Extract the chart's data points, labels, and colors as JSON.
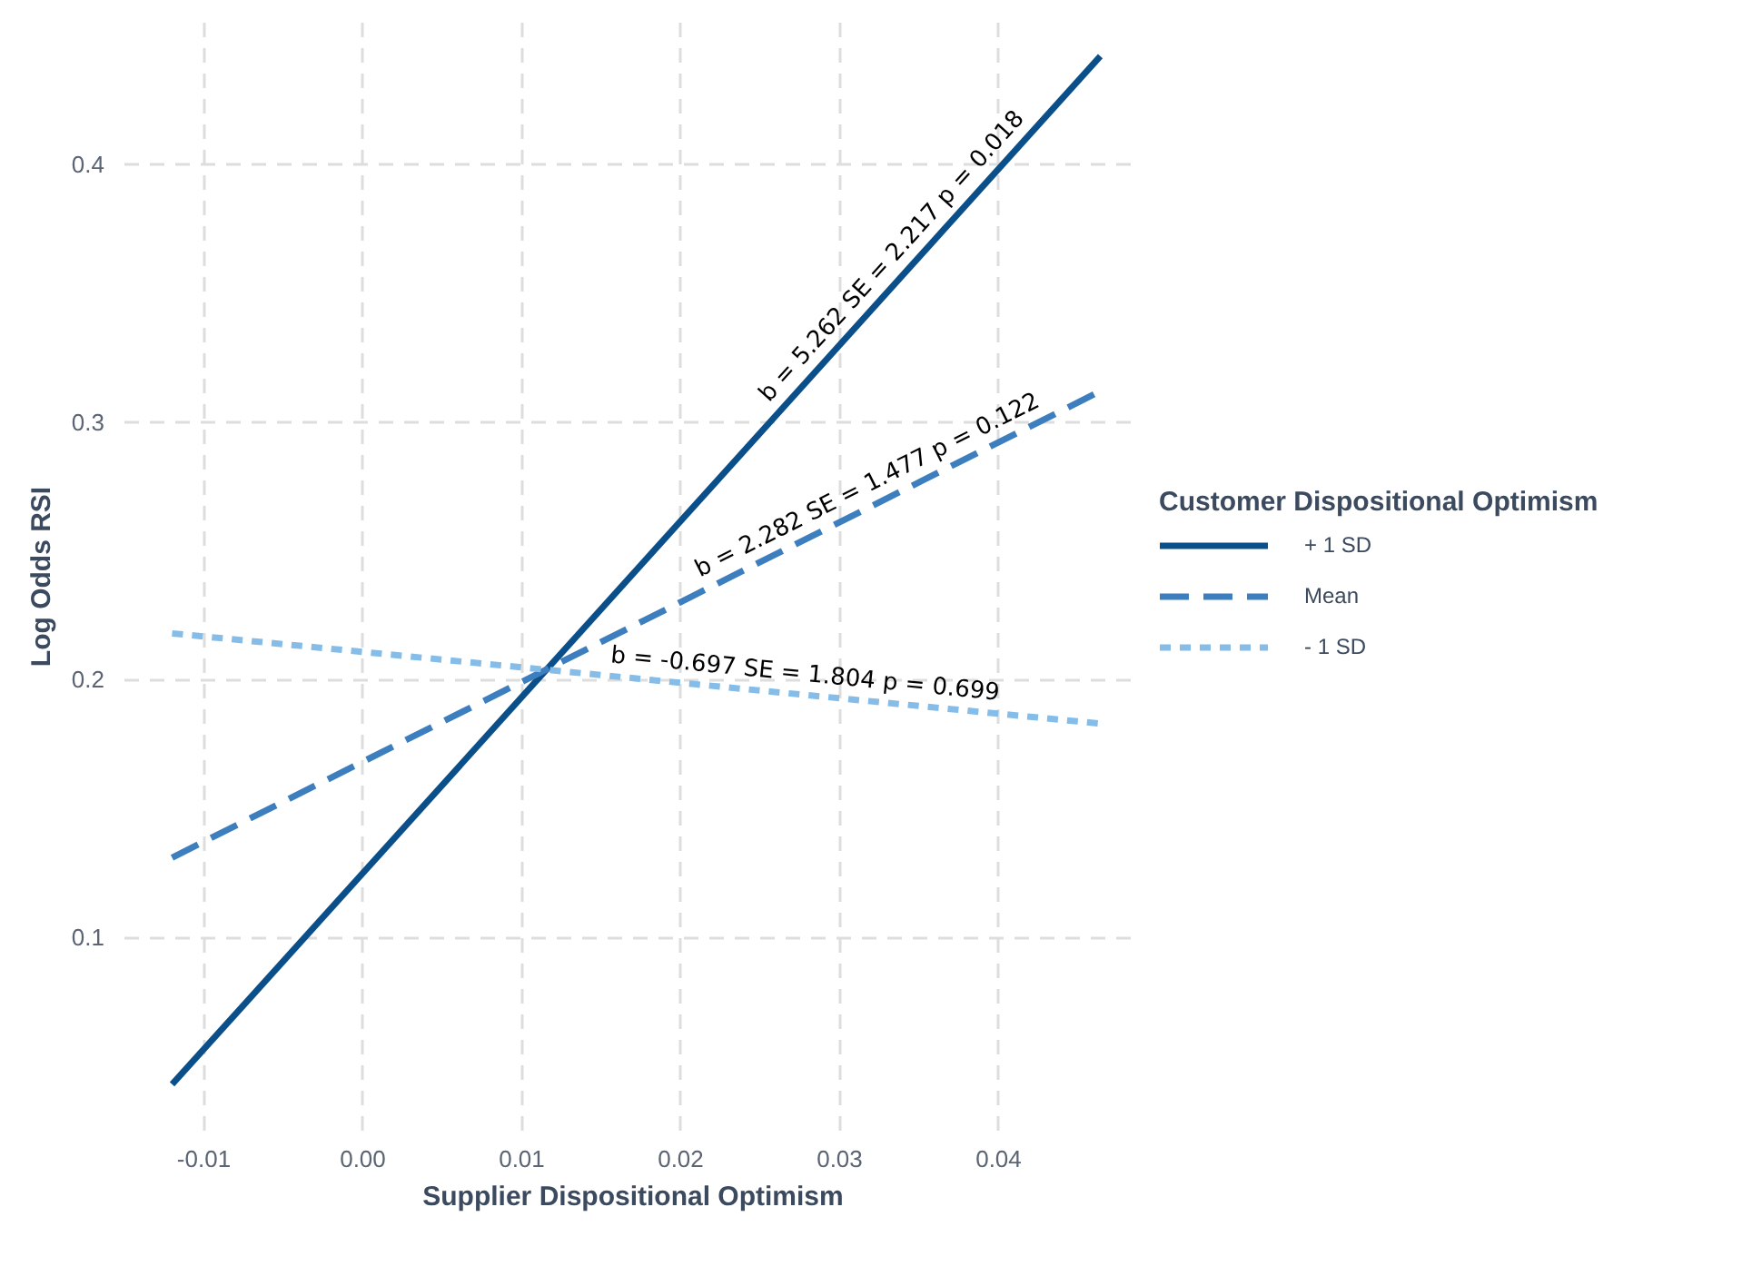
{
  "chart_data": {
    "type": "line",
    "xlabel": "Supplier Dispositional Optimism",
    "ylabel": "Log Odds RSI",
    "legend_title": "Customer Dispositional Optimism",
    "legend": "right",
    "grid": true,
    "x": [
      -0.012,
      0.0464
    ],
    "series": [
      {
        "name": "+ 1 SD",
        "color": "#0b4f8a",
        "line_style": "solid",
        "values": [
          0.043,
          0.442
        ]
      },
      {
        "name": "Mean",
        "color": "#3d7ebf",
        "line_style": "dashed",
        "values": [
          0.131,
          0.312
        ]
      },
      {
        "name": "- 1 SD",
        "color": "#85bde8",
        "line_style": "dotted",
        "values": [
          0.218,
          0.183
        ]
      }
    ],
    "xlim": [
      -0.015,
      0.049
    ],
    "xticks": [
      {
        "value": -0.01,
        "label": "-0.01"
      },
      {
        "value": 0,
        "label": "0.00"
      },
      {
        "value": 0.01,
        "label": "0.01"
      },
      {
        "value": 0.02,
        "label": "0.02"
      },
      {
        "value": 0.03,
        "label": "0.03"
      },
      {
        "value": 0.04,
        "label": "0.04"
      }
    ],
    "ylim": [
      0.025,
      0.455
    ],
    "yticks": [
      0.1,
      0.2,
      0.3,
      0.4
    ],
    "annotations": [
      "b = 5.262  SE = 2.217   p = 0.018",
      "b = 2.282  SE = 1.477   p = 0.122",
      "b = -0.697   SE = 1.804    p = 0.699"
    ]
  }
}
